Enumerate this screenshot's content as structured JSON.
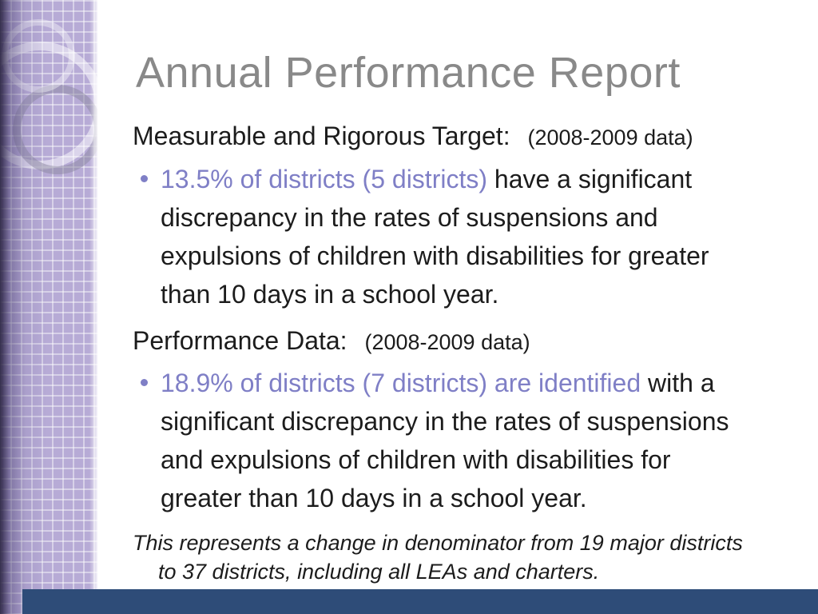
{
  "slide": {
    "title": "Annual Performance Report",
    "target": {
      "heading": "Measurable and Rigorous Target:",
      "note": "(2008-2009 data)",
      "bullet_highlight": "13.5% of districts (5 districts)",
      "bullet_rest": " have a significant discrepancy in the rates of suspensions and expulsions of children with disabilities for greater than 10 days in a school year."
    },
    "performance": {
      "heading": "Performance Data:",
      "note": "(2008-2009 data)",
      "bullet_highlight": "18.9% of districts (7 districts) are identified",
      "bullet_rest": " with a significant discrepancy in the rates of suspensions and expulsions of children with disabilities for greater than 10 days in a school year."
    },
    "footnote": "This represents a change in denominator from 19 major districts to 37 districts, including all LEAs and charters.",
    "colors": {
      "accent_purple": "#7f7fc6",
      "title_gray": "#898989",
      "body_text": "#1c1c1c",
      "bottom_bar_navy": "#2e4c78",
      "sidebar_lavender": "#b7abd6"
    }
  }
}
